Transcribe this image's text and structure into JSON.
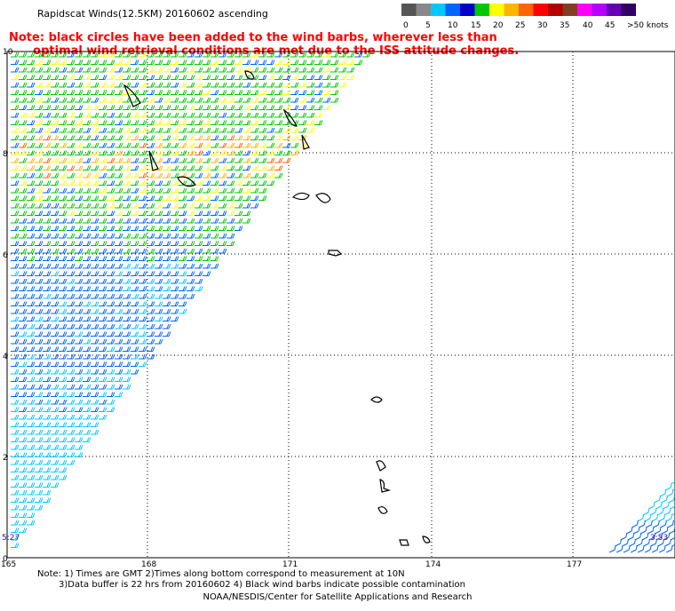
{
  "title": "Rapidscat Winds(12.5KM) 20160602 ascending",
  "legend": {
    "labels": [
      "0",
      "5",
      "10",
      "15",
      "20",
      "25",
      "30",
      "35",
      "40",
      "45",
      ">50 knots"
    ],
    "colors": [
      "#555555",
      "#888888",
      "#00c8ff",
      "#0064ff",
      "#0000c8",
      "#00c800",
      "#ffff00",
      "#ffb400",
      "#ff6400",
      "#ff0000",
      "#b40000",
      "#804020",
      "#ff00ff",
      "#b400ff",
      "#6400b4",
      "#320064"
    ]
  },
  "note": "Note: black circles have been added to the wind barbs, wherever less than\n      optimal wind retrieval conditions are met due to the ISS attitude changes.",
  "map": {
    "lon_ticks": [
      "165",
      "168",
      "171",
      "174",
      "177"
    ],
    "lat_ticks": [
      "0",
      "2",
      "4",
      "6",
      "8",
      "10"
    ],
    "time_labels": {
      "left": "5:27",
      "right": "3:53"
    }
  },
  "footer": {
    "line1": "Note: 1) Times are GMT 2)Times along bottom correspond to measurement at 10N",
    "line2": "3)Data buffer is 22 hrs from 20160602 4) Black wind barbs indicate possible contamination",
    "credit": "NOAA/NESDIS/Center for Satellite Applications and Research"
  }
}
